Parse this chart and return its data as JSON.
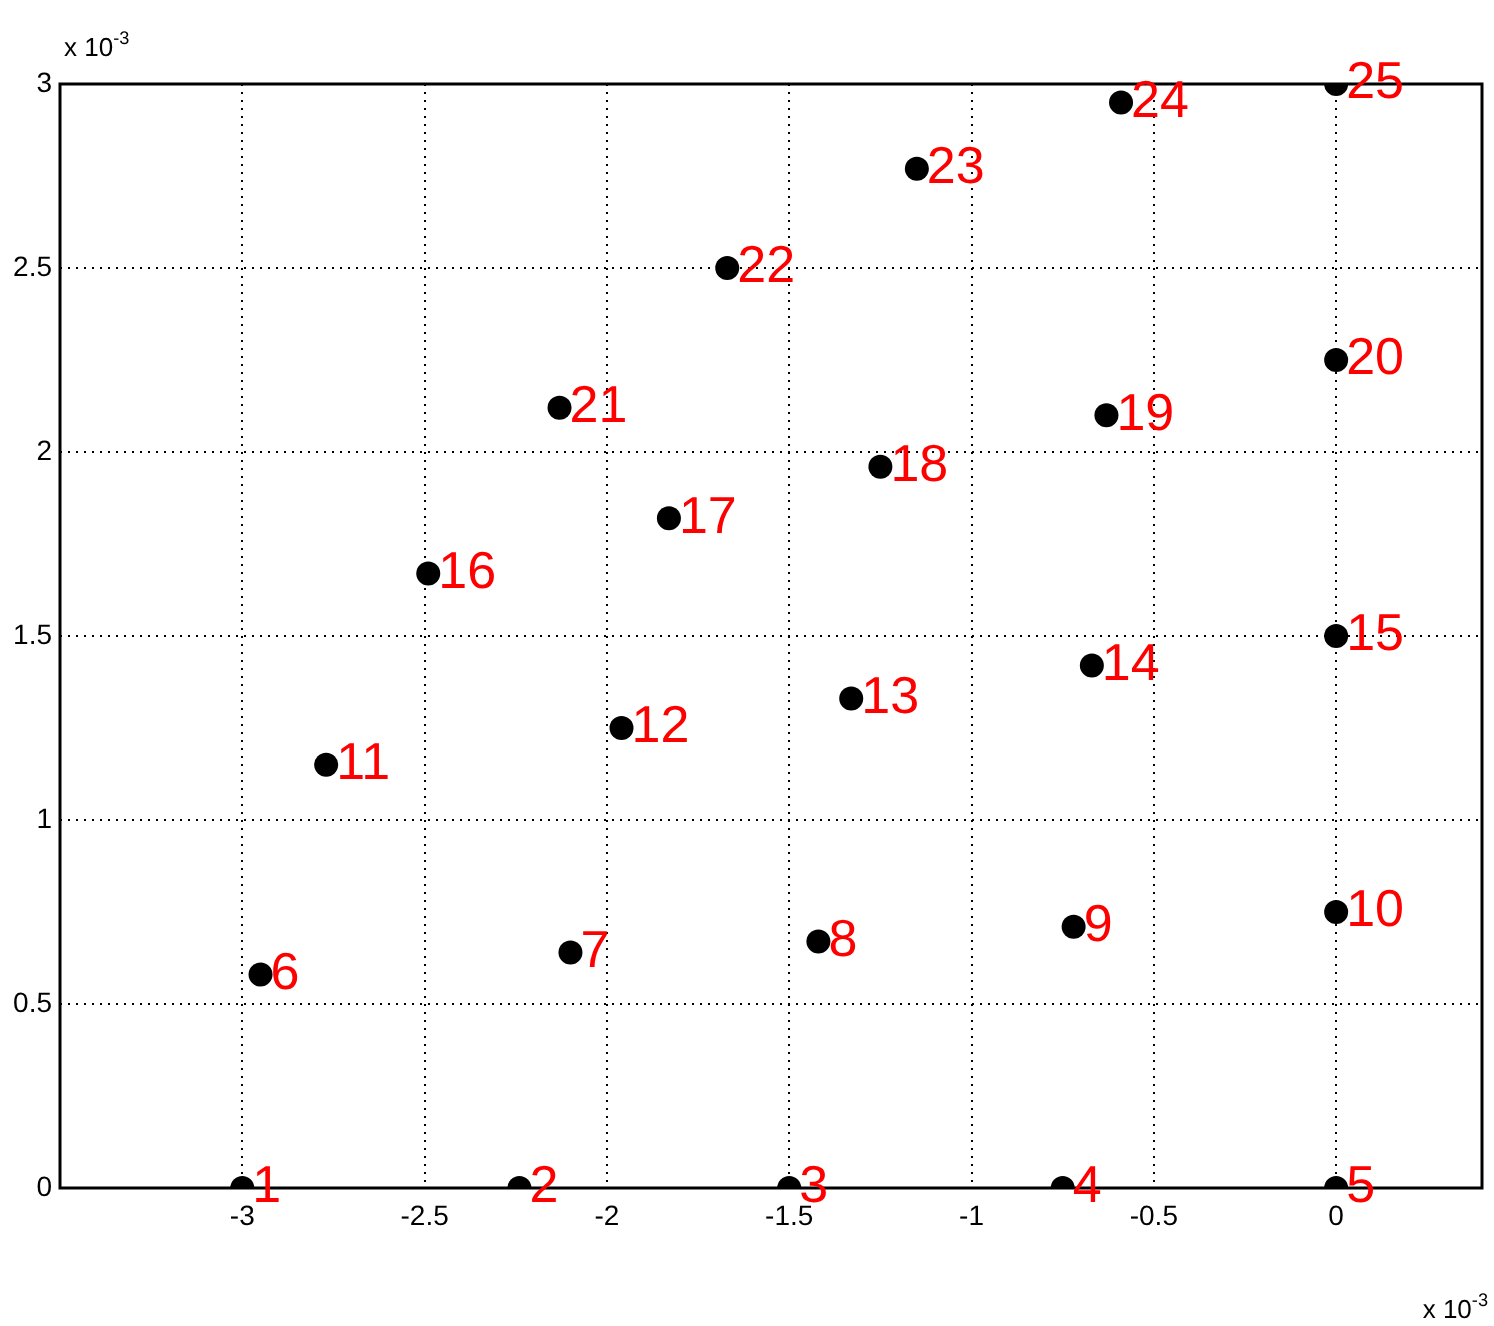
{
  "chart_data": {
    "type": "scatter",
    "xlim": [
      -3.5,
      0.4
    ],
    "ylim": [
      0,
      3
    ],
    "xticks": [
      -3,
      -2.5,
      -2,
      -1.5,
      -1,
      -0.5,
      0
    ],
    "yticks": [
      0,
      0.5,
      1,
      1.5,
      2,
      2.5,
      3
    ],
    "grid": true,
    "marker": "circle",
    "annotations": [
      "x 10$^{-3}$",
      "x 10$^{-3}$",
      {
        "text": "1",
        "x": -3,
        "y": 0
      },
      {
        "text": "2",
        "x": -2.24,
        "y": 0
      },
      {
        "text": "3",
        "x": -1.5,
        "y": 0
      },
      {
        "text": "4",
        "x": -0.75,
        "y": 0
      },
      {
        "text": "5",
        "x": 0,
        "y": 0
      },
      {
        "text": "6",
        "x": -2.95,
        "y": 0.58
      },
      {
        "text": "7",
        "x": -2.1,
        "y": 0.64
      },
      {
        "text": "8",
        "x": -1.42,
        "y": 0.67
      },
      {
        "text": "9",
        "x": -0.72,
        "y": 0.71
      },
      {
        "text": "10",
        "x": 0,
        "y": 0.75
      },
      {
        "text": "11",
        "x": -2.77,
        "y": 1.15
      },
      {
        "text": "12",
        "x": -1.96,
        "y": 1.25
      },
      {
        "text": "13",
        "x": -1.33,
        "y": 1.33
      },
      {
        "text": "14",
        "x": -0.67,
        "y": 1.42
      },
      {
        "text": "15",
        "x": 0,
        "y": 1.5
      },
      {
        "text": "16",
        "x": -2.49,
        "y": 1.67
      },
      {
        "text": "17",
        "x": -1.83,
        "y": 1.82
      },
      {
        "text": "18",
        "x": -1.25,
        "y": 1.96
      },
      {
        "text": "19",
        "x": -0.63,
        "y": 2.1
      },
      {
        "text": "20",
        "x": 0,
        "y": 2.25
      },
      {
        "text": "21",
        "x": -2.13,
        "y": 2.12
      },
      {
        "text": "22",
        "x": -1.67,
        "y": 2.5
      },
      {
        "text": "23",
        "x": -1.15,
        "y": 2.77
      },
      {
        "text": "24",
        "x": -0.59,
        "y": 2.95
      },
      {
        "text": "25",
        "x": 0,
        "y": 3
      }
    ],
    "series": [
      {
        "color": "#000000",
        "x": [
          -3,
          -2.24,
          -1.5,
          -0.75,
          0,
          -2.95,
          -2.1,
          -1.42,
          -0.72,
          0,
          -2.77,
          -1.96,
          -1.33,
          -0.67,
          0,
          -2.49,
          -1.83,
          -1.25,
          -0.63,
          0,
          -2.13,
          -1.67,
          -1.15,
          -0.59,
          0
        ],
        "values": [
          0,
          0,
          0,
          0,
          0,
          0.58,
          0.64,
          0.67,
          0.71,
          0.75,
          1.15,
          1.25,
          1.33,
          1.42,
          1.5,
          1.67,
          1.82,
          1.96,
          2.1,
          2.25,
          2.12,
          2.5,
          2.77,
          2.95,
          3
        ]
      }
    ]
  }
}
